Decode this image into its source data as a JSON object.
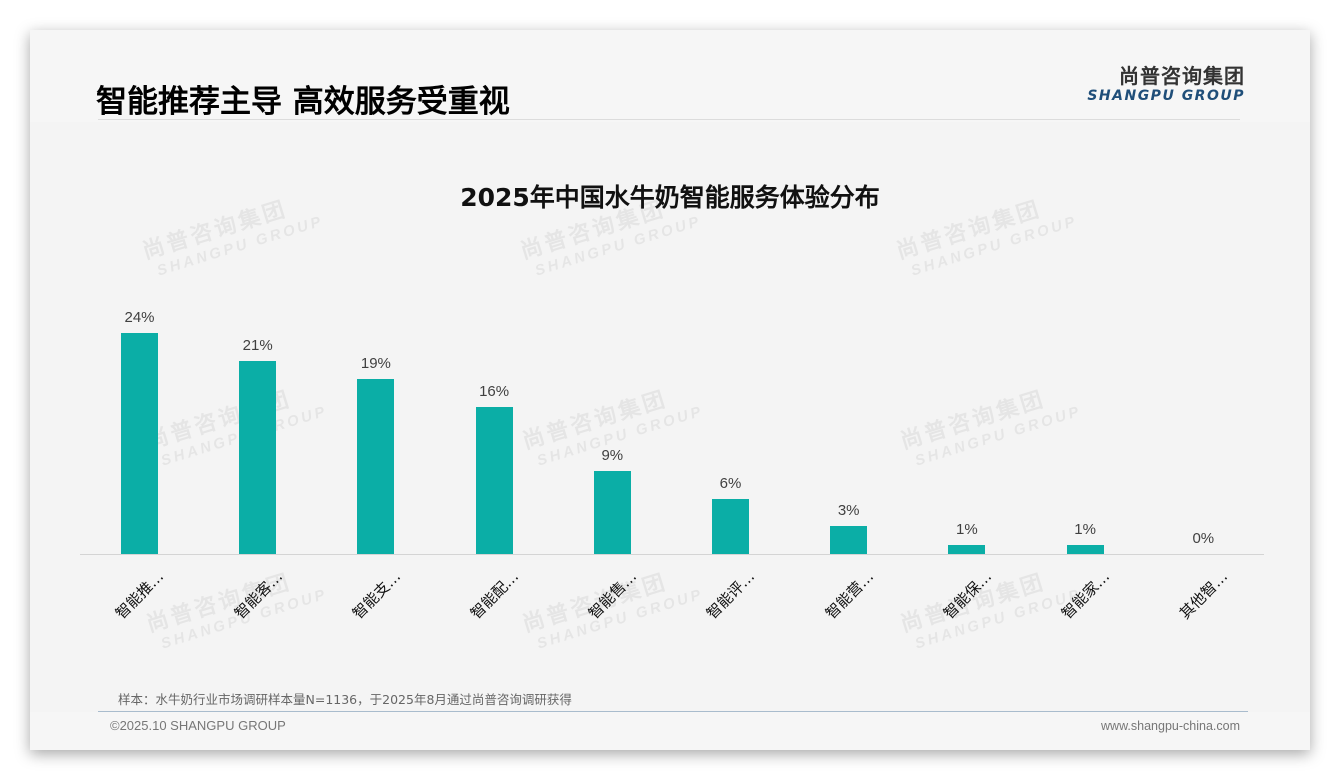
{
  "header": {
    "title": "智能推荐主导 高效服务受重视",
    "logo_cn": "尚普咨询集团",
    "logo_en": "SHANGPU GROUP"
  },
  "watermark": {
    "cn": "尚普咨询集团",
    "en": "SHANGPU GROUP"
  },
  "chart_data": {
    "type": "bar",
    "title": "2025年中国水牛奶智能服务体验分布",
    "categories": [
      "智能推…",
      "智能客…",
      "智能支…",
      "智能配…",
      "智能售…",
      "智能评…",
      "智能营…",
      "智能保…",
      "智能家…",
      "其他智…"
    ],
    "values": [
      24,
      21,
      19,
      16,
      9,
      6,
      3,
      1,
      1,
      0
    ],
    "value_labels": [
      "24%",
      "21%",
      "19%",
      "16%",
      "9%",
      "6%",
      "3%",
      "1%",
      "1%",
      "0%"
    ],
    "xlabel": "",
    "ylabel": "",
    "ylim": [
      0,
      25
    ],
    "grid": false,
    "legend": "none",
    "bar_color": "#0baea6",
    "unit": "%"
  },
  "footer": {
    "note": "样本：水牛奶行业市场调研样本量N=1136，于2025年8月通过尚普咨询调研获得",
    "copyright": "©2025.10 SHANGPU GROUP",
    "website": "www.shangpu-china.com"
  }
}
